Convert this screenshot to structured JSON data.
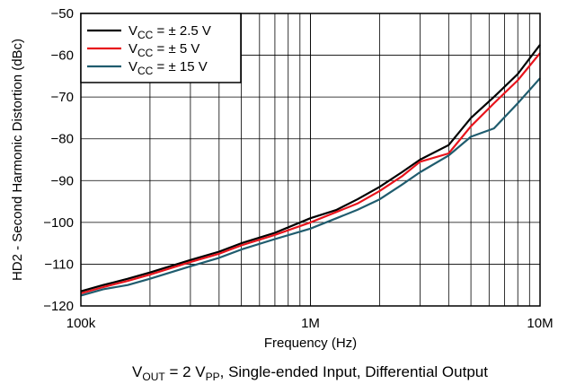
{
  "chart_data": {
    "type": "line",
    "xscale": "log",
    "xlim": [
      100000,
      10000000
    ],
    "ylim": [
      -120,
      -50
    ],
    "grid": true,
    "xlabel": "Frequency (Hz)",
    "ylabel": "HD2 - Second Harmonic Distortion (dBc)",
    "x_tick_labels": [
      {
        "value": 100000,
        "label": "100k"
      },
      {
        "value": 1000000,
        "label": "1M"
      },
      {
        "value": 10000000,
        "label": "10M"
      }
    ],
    "y_ticks": [
      -50,
      -60,
      -70,
      -80,
      -90,
      -100,
      -110,
      -120
    ],
    "legend_position": "top-left",
    "series": [
      {
        "name": "VCC = ± 2.5 V",
        "label_main": "V",
        "label_sub": "CC",
        "label_rest": " = ± 2.5 V",
        "color": "#000000",
        "x": [
          100000,
          125000,
          160000,
          200000,
          300000,
          400000,
          500000,
          700000,
          1000000,
          1300000,
          1600000,
          2000000,
          2500000,
          3000000,
          4000000,
          5000000,
          6300000,
          8000000,
          10000000
        ],
        "y": [
          -116.5,
          -115,
          -113.5,
          -112,
          -109,
          -107,
          -105,
          -102.5,
          -99,
          -97,
          -94.5,
          -91.5,
          -88,
          -85,
          -81.5,
          -75,
          -70,
          -64.5,
          -57.5
        ]
      },
      {
        "name": "VCC = ± 5 V",
        "label_main": "V",
        "label_sub": "CC",
        "label_rest": " = ± 5 V",
        "color": "#e8141c",
        "x": [
          100000,
          125000,
          160000,
          200000,
          300000,
          400000,
          500000,
          700000,
          1000000,
          1300000,
          1600000,
          2000000,
          2500000,
          3000000,
          4000000,
          5000000,
          6300000,
          8000000,
          10000000
        ],
        "y": [
          -117,
          -115.5,
          -114,
          -112.5,
          -109.5,
          -107.5,
          -105.5,
          -103,
          -100,
          -97.5,
          -95.5,
          -92.5,
          -89,
          -85.5,
          -83.5,
          -77,
          -71.5,
          -66,
          -59.5
        ]
      },
      {
        "name": "VCC = ± 15 V",
        "label_main": "V",
        "label_sub": "CC",
        "label_rest": " = ± 15 V",
        "color": "#1f5c6e",
        "x": [
          100000,
          125000,
          160000,
          200000,
          300000,
          400000,
          500000,
          700000,
          1000000,
          1300000,
          1600000,
          2000000,
          2500000,
          3000000,
          4000000,
          5000000,
          6300000,
          8000000,
          10000000
        ],
        "y": [
          -117.5,
          -116,
          -115,
          -113.5,
          -110.5,
          -108.5,
          -106.5,
          -104,
          -101.5,
          -99,
          -97,
          -94.5,
          -91,
          -88,
          -84,
          -79.5,
          -77.5,
          -71.5,
          -65.5
        ]
      }
    ],
    "note": {
      "v": "V",
      "out": "OUT",
      "mid": " = 2 V",
      "pp": "PP",
      "rest": ", Single-ended Input, Differential Output"
    }
  }
}
